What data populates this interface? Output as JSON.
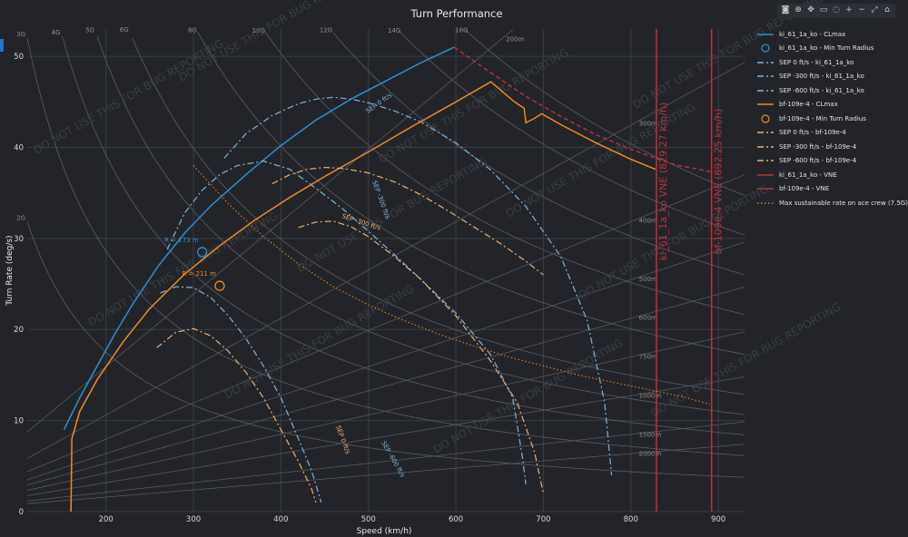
{
  "chart_data": {
    "type": "line",
    "title": "Turn Performance",
    "xlabel": "Speed (km/h)",
    "ylabel": "Turn Rate (deg/s)",
    "xlim": [
      110,
      930
    ],
    "ylim": [
      0,
      53
    ],
    "xticks": [
      200,
      300,
      400,
      500,
      600,
      700,
      800,
      900
    ],
    "yticks": [
      0,
      10,
      20,
      30,
      40,
      50
    ],
    "grid": true,
    "legend_position": "right",
    "watermark": "DO NOT USE THIS FOR BUG REPORTING",
    "g_labels": [
      "2G",
      "3G",
      "4G",
      "5G",
      "6G",
      "8G",
      "10G",
      "12G",
      "14G",
      "16G"
    ],
    "g_values": [
      2,
      3,
      4,
      5,
      6,
      8,
      10,
      12,
      14,
      16
    ],
    "radius_labels": [
      "200m",
      "300m",
      "400m",
      "500m",
      "600m",
      "750m",
      "1000m",
      "1500m",
      "2000m"
    ],
    "radius_values": [
      200,
      300,
      400,
      500,
      600,
      750,
      1000,
      1500,
      2000
    ],
    "series": [
      {
        "name": "ki_61_1a_ko - CLmax",
        "color": "#2e8fd4",
        "style": "solid",
        "x": [
          152,
          170,
          190,
          210,
          230,
          260,
          290,
          320,
          360,
          400,
          440,
          480,
          520,
          560,
          598
        ],
        "y": [
          9,
          12.5,
          16,
          19.5,
          22.7,
          27,
          30.6,
          33.6,
          37,
          40.2,
          43,
          45.3,
          47.3,
          49.3,
          51
        ]
      },
      {
        "name": "ki_61_1a_ko - Min Turn Radius",
        "color": "#2e8fd4",
        "style": "marker",
        "x": [
          310
        ],
        "y": [
          28.5
        ],
        "annotation": "R = 173 m"
      },
      {
        "name": "SEP 0 ft/s - ki_61_1a_ko",
        "color": "#7fb3dc",
        "style": "dashdot",
        "x": [
          335,
          360,
          390,
          420,
          440,
          460,
          480,
          500,
          530,
          560,
          600,
          640,
          680,
          720,
          750,
          770,
          778
        ],
        "y": [
          38.8,
          41.5,
          43.5,
          44.8,
          45.3,
          45.5,
          45.3,
          44.9,
          44,
          42.8,
          40.5,
          37.5,
          33.5,
          28,
          21,
          12,
          4
        ]
      },
      {
        "name": "SEP -300 ft/s - ki_61_1a_ko",
        "color": "#7fb3dc",
        "style": "dashdot",
        "x": [
          270,
          290,
          310,
          330,
          350,
          380,
          410,
          440,
          470,
          500,
          530,
          560,
          600,
          640,
          665,
          676,
          680
        ],
        "y": [
          28.8,
          32.8,
          35.3,
          37,
          38,
          38.5,
          37.6,
          35.5,
          33.3,
          30.8,
          28.2,
          25.5,
          21.8,
          17.2,
          12.5,
          6,
          3
        ]
      },
      {
        "name": "SEP -600 ft/s - ki_61_1a_ko",
        "color": "#7fb3dc",
        "style": "dashdot",
        "x": [
          262,
          280,
          300,
          320,
          340,
          360,
          380,
          400,
          420,
          435,
          443,
          446
        ],
        "y": [
          24,
          24.7,
          24.6,
          23.5,
          21.5,
          19,
          16,
          12.5,
          8,
          4.5,
          2,
          1
        ]
      },
      {
        "name": "bf-109e-4 - CLmax",
        "color": "#f08a24",
        "style": "solid",
        "x": [
          160,
          161,
          170,
          190,
          220,
          250,
          290,
          330,
          370,
          410,
          450,
          500,
          550,
          600,
          640,
          667
        ],
        "y": [
          0,
          8,
          11,
          14.5,
          18.7,
          22.3,
          26.1,
          29.2,
          32,
          34.5,
          36.8,
          39.5,
          42.3,
          45,
          47.2,
          45
        ]
      },
      {
        "name": "bf-109e-4 - Min Turn Radius",
        "color": "#f08a24",
        "style": "marker",
        "x": [
          330
        ],
        "y": [
          24.8
        ],
        "annotation": "R = 211 m"
      },
      {
        "name": "SEP 0 ft/s - bf-109e-4",
        "color": "#f0b070",
        "style": "dashdot",
        "x": [
          390,
          410,
          430,
          450,
          470,
          500,
          530,
          560,
          590,
          620,
          650,
          680,
          700
        ],
        "y": [
          36,
          37,
          37.6,
          37.8,
          37.7,
          37.2,
          36.2,
          34.8,
          33.1,
          31.3,
          29.5,
          27.5,
          26
        ]
      },
      {
        "name": "SEP -300 ft/s - bf-109e-4",
        "color": "#f0b070",
        "style": "dashdot",
        "x": [
          420,
          440,
          460,
          480,
          500,
          530,
          560,
          600,
          640,
          670,
          690,
          700
        ],
        "y": [
          31.2,
          31.8,
          31.9,
          31.3,
          30.2,
          28,
          25.5,
          21.5,
          16.5,
          12,
          6.5,
          2
        ]
      },
      {
        "name": "SEP -600 ft/s - bf-109e-4",
        "color": "#f0b070",
        "style": "dashdot",
        "x": [
          258,
          280,
          300,
          320,
          340,
          360,
          380,
          400,
          420,
          435,
          440
        ],
        "y": [
          18,
          19.7,
          20.1,
          19.3,
          17.6,
          15.3,
          12.5,
          9,
          5.5,
          2.5,
          1
        ]
      },
      {
        "name": "ki_61_1a_ko - VNE",
        "color": "#c0303a",
        "style": "solid",
        "x": [
          829.27,
          829.27
        ],
        "y": [
          0,
          53
        ],
        "annotation": "ki_61_1a_ko VNE (829.27 km/h)"
      },
      {
        "name": "bf-109e-4 - VNE",
        "color": "#c0303a",
        "style": "solid",
        "x": [
          892.25,
          892.25
        ],
        "y": [
          0,
          53
        ],
        "annotation": "bf-109e-4 VNE (892.25 km/h)"
      },
      {
        "name": "Max sustainable rate on ace crew (7.5G)",
        "color": "#e07820",
        "style": "dot",
        "x": [
          300,
          340,
          380,
          420,
          460,
          500,
          540,
          580,
          620,
          660,
          700,
          740,
          780,
          820,
          860,
          890
        ],
        "y": [
          38,
          33.8,
          30.2,
          27.2,
          24.7,
          22.7,
          21,
          19.5,
          18.2,
          17,
          16,
          15,
          14.2,
          13.4,
          12.6,
          11.8
        ]
      }
    ],
    "g_limit_line": {
      "color": "#c0303a",
      "x": [
        598,
        640,
        680,
        720,
        760,
        800,
        850,
        893
      ],
      "y": [
        51,
        48.2,
        45.6,
        43.4,
        41.4,
        39.8,
        38.1,
        37.3
      ]
    },
    "bf_high_speed": {
      "color": "#f08a24",
      "x": [
        667,
        678,
        680,
        690,
        698,
        720,
        760,
        800,
        828
      ],
      "y": [
        45,
        44.3,
        42.7,
        43.2,
        43.7,
        42.5,
        40.5,
        38.7,
        37.6
      ]
    },
    "curve_annotations": [
      {
        "text": "SEP 0 ft/s",
        "color": "#7fb3dc"
      },
      {
        "text": "SEP -300 ft/s",
        "color": "#7fb3dc"
      },
      {
        "text": "SEP -300 ft/s",
        "color": "#f0b070"
      },
      {
        "text": "SEP 0 ft/s",
        "color": "#f0b070"
      },
      {
        "text": "SEP -600 ft/s",
        "color": "#7fb3dc"
      }
    ]
  },
  "modebar": {
    "buttons": [
      "camera-icon",
      "zoom-icon",
      "pan-icon",
      "box-select-icon",
      "lasso-icon",
      "zoom-in-icon",
      "zoom-out-icon",
      "autoscale-icon",
      "home-icon"
    ]
  }
}
